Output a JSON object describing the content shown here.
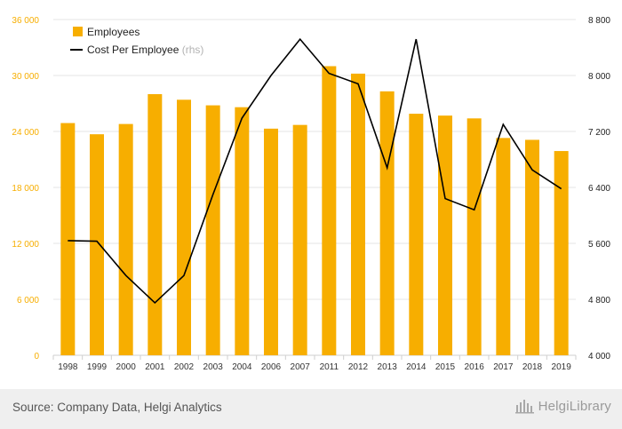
{
  "chart_data": {
    "type": "bar+line",
    "categories": [
      "1998",
      "1999",
      "2000",
      "2001",
      "2002",
      "2003",
      "2004",
      "2006",
      "2007",
      "2011",
      "2012",
      "2013",
      "2014",
      "2015",
      "2016",
      "2017",
      "2018",
      "2019"
    ],
    "series": [
      {
        "name": "Employees",
        "type": "bar",
        "axis": "left",
        "color": "#f7ae00",
        "values": [
          24900,
          23700,
          24800,
          28000,
          27400,
          26800,
          26600,
          24300,
          24700,
          31000,
          30200,
          28300,
          25900,
          25700,
          25400,
          23300,
          23100,
          21900
        ]
      },
      {
        "name": "Cost Per Employee",
        "name_suffix": "(rhs)",
        "type": "line",
        "axis": "right",
        "color": "#000000",
        "values": [
          5640,
          5630,
          5140,
          4750,
          5140,
          6300,
          7390,
          8000,
          8520,
          8030,
          7880,
          6680,
          8520,
          6240,
          6080,
          7300,
          6650,
          6380
        ]
      }
    ],
    "yaxis_left": {
      "min": 0,
      "max": 36000,
      "ticks": [
        "0",
        "6 000",
        "12 000",
        "18 000",
        "24 000",
        "30 000",
        "36 000"
      ],
      "tick_values": [
        0,
        6000,
        12000,
        18000,
        24000,
        30000,
        36000
      ],
      "color": "#f7ae00"
    },
    "yaxis_right": {
      "min": 4000,
      "max": 8800,
      "ticks": [
        "4 000",
        "4 800",
        "5 600",
        "6 400",
        "7 200",
        "8 000",
        "8 800"
      ],
      "tick_values": [
        4000,
        4800,
        5600,
        6400,
        7200,
        8000,
        8800
      ],
      "color": "#222222"
    },
    "grid": true,
    "legend_position": "top-left"
  },
  "footer": {
    "source": "Source: Company Data, Helgi Analytics",
    "brand": "HelgiLibrary"
  },
  "icons": {
    "brand_icon": "helgi-library-logo-icon"
  }
}
